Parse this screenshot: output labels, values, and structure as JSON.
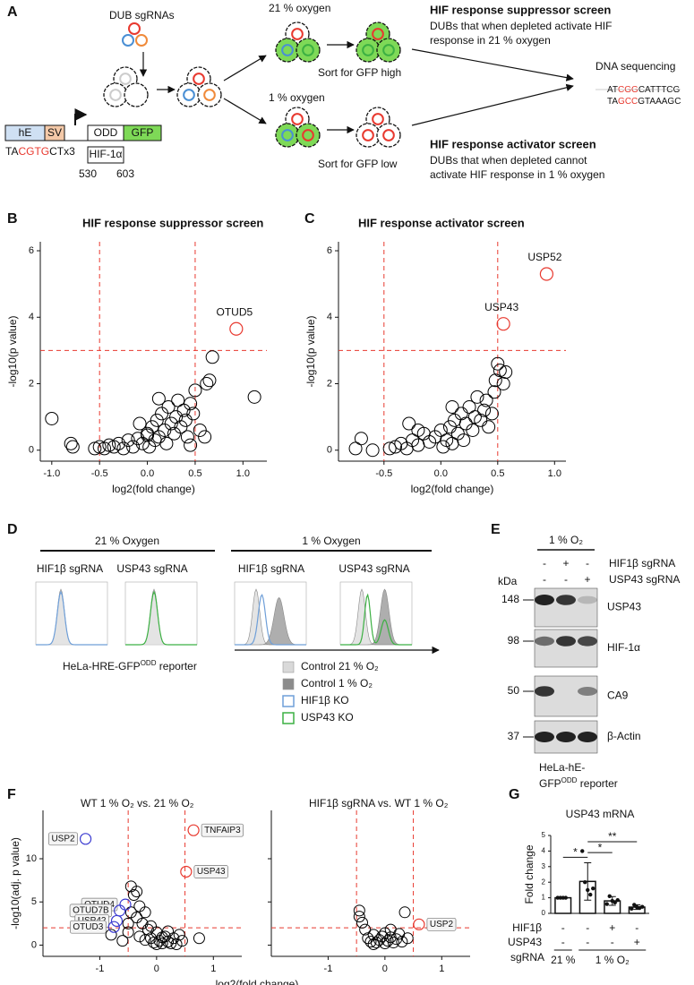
{
  "panel_a": {
    "label": "A",
    "sgrnas": "DUB sgRNAs",
    "normoxia": "21 % oxygen",
    "sort_high": "Sort for GFP high",
    "hypoxia": "1 % oxygen",
    "sort_low": "Sort for GFP low",
    "suppressor_title": "HIF response suppressor screen",
    "suppressor_text": [
      "DUBs that when depleted activate HIF",
      "response in 21 % oxygen"
    ],
    "sequencing": "DNA sequencing",
    "seq_top": [
      "AT",
      "CGG",
      "CATTTCG"
    ],
    "seq_bottom": [
      "TA",
      "GCC",
      "GTAAAGC"
    ],
    "activator_title": "HIF response activator screen",
    "activator_text": [
      "DUBs that when depleted cannot",
      "activate HIF response in 1 % oxygen"
    ],
    "construct": {
      "he": "hE",
      "sv": "SV",
      "odd": "ODD",
      "gfp": "GFP",
      "hif": "HIF-1α",
      "start": "530",
      "end": "603",
      "motif": [
        "TA",
        "CGTG",
        "CTx3"
      ]
    }
  },
  "chart_data": [
    {
      "type": "scatter",
      "panel": "B",
      "title": "HIF response suppressor screen",
      "x_label": "log2(fold change)",
      "y_label": "-log10(p value)",
      "xlim": [
        -1.12,
        1.25
      ],
      "ylim": [
        -0.33,
        6.27
      ],
      "xticks": [
        {
          "value": -1,
          "label": "-1.0"
        },
        {
          "value": -0.5,
          "label": "-0.5"
        },
        {
          "value": 0,
          "label": "0.0"
        },
        {
          "value": 0.5,
          "label": "0.5"
        },
        {
          "value": 1,
          "label": "1.0"
        }
      ],
      "yticks": [
        0,
        2,
        4,
        6
      ],
      "thresholds": {
        "x": [
          -0.5,
          0.5
        ],
        "y": 3,
        "color": "#e8392f"
      },
      "color": "#000000",
      "x": [
        -1.0,
        -0.8,
        -0.78,
        -0.55,
        -0.5,
        -0.45,
        -0.4,
        -0.35,
        -0.3,
        -0.25,
        -0.2,
        -0.15,
        -0.1,
        -0.05,
        0,
        0.02,
        0.05,
        0.08,
        0.1,
        0.12,
        0.15,
        0.18,
        0.2,
        0.22,
        0.25,
        0.28,
        0.3,
        0.32,
        0.35,
        0.38,
        0.4,
        0.42,
        0.45,
        0.48,
        0.5,
        0.55,
        0.6,
        0.62,
        0.65,
        0.68,
        0.45,
        0.12,
        -0.08,
        0.0,
        1.12
      ],
      "y": [
        0.95,
        0.2,
        0.1,
        0.05,
        0.1,
        0.05,
        0.15,
        0.1,
        0.2,
        0.05,
        0.3,
        0.1,
        0.35,
        0.2,
        0.5,
        0.1,
        0.7,
        0.3,
        0.9,
        0.4,
        1.1,
        0.6,
        0.2,
        1.3,
        0.8,
        0.5,
        1.0,
        1.5,
        0.7,
        1.2,
        0.9,
        0.4,
        1.4,
        1.1,
        1.8,
        0.6,
        0.4,
        2.0,
        2.1,
        2.8,
        0.15,
        1.55,
        0.8,
        0.45,
        1.6
      ],
      "highlights": [
        {
          "label": "OTUD5",
          "x": 0.93,
          "y": 3.65,
          "color": "#e8392f"
        }
      ]
    },
    {
      "type": "scatter",
      "panel": "C",
      "title": "HIF response activator screen",
      "x_label": "log2(fold change)",
      "y_label": "-log10(p value)",
      "xlim": [
        -0.9,
        1.1
      ],
      "ylim": [
        -0.33,
        6.27
      ],
      "xticks": [
        {
          "value": -0.5,
          "label": "-0.5"
        },
        {
          "value": 0,
          "label": "0.0"
        },
        {
          "value": 0.5,
          "label": "0.5"
        },
        {
          "value": 1,
          "label": "1.0"
        }
      ],
      "yticks": [
        0,
        2,
        4,
        6
      ],
      "thresholds": {
        "x": [
          -0.5,
          0.5
        ],
        "y": 3,
        "color": "#e8392f"
      },
      "color": "#000000",
      "x": [
        -0.75,
        -0.7,
        -0.6,
        -0.45,
        -0.4,
        -0.35,
        -0.3,
        -0.25,
        -0.2,
        -0.15,
        -0.1,
        -0.05,
        0,
        0.02,
        0.05,
        0.08,
        0.1,
        0.12,
        0.15,
        0.18,
        0.2,
        0.22,
        0.25,
        0.28,
        0.3,
        0.32,
        0.35,
        0.38,
        0.4,
        0.42,
        0.45,
        0.47,
        0.48,
        0.5,
        0.52,
        0.55,
        0.57,
        -0.28,
        -0.2,
        0.1
      ],
      "y": [
        0.05,
        0.35,
        0.0,
        0.05,
        0.1,
        0.2,
        0.05,
        0.3,
        0.15,
        0.5,
        0.25,
        0.4,
        0.6,
        0.1,
        0.3,
        0.7,
        0.2,
        0.9,
        0.5,
        1.1,
        0.3,
        0.8,
        1.3,
        0.6,
        1.0,
        1.6,
        0.9,
        1.2,
        1.5,
        0.7,
        1.1,
        1.75,
        2.1,
        2.6,
        2.4,
        2.0,
        2.35,
        0.8,
        0.6,
        1.3
      ],
      "highlights": [
        {
          "label": "USP52",
          "x": 0.93,
          "y": 5.3,
          "color": "#e8392f"
        },
        {
          "label": "USP43",
          "x": 0.55,
          "y": 3.8,
          "color": "#e8392f"
        }
      ]
    },
    {
      "type": "scatter",
      "panel": "F",
      "title": "WT 1 % O₂ vs. 21 % O₂",
      "x_label": "log2(fold change)",
      "y_label": "-log10(adj. p value)",
      "xlim": [
        -2.0,
        1.5
      ],
      "ylim": [
        -1.3,
        15.6
      ],
      "xticks": [
        -1,
        0,
        1
      ],
      "yticks": [
        0,
        5,
        10
      ],
      "thresholds": {
        "x": [
          -0.5,
          0.5
        ],
        "y": 2,
        "color": "#e8392f"
      },
      "color": "#000000",
      "x": [
        -0.8,
        -0.6,
        -0.5,
        -0.45,
        -0.4,
        -0.35,
        -0.3,
        -0.35,
        -0.25,
        -0.2,
        -0.15,
        -0.1,
        -0.05,
        0,
        0.05,
        0.1,
        0.15,
        0.2,
        0.25,
        0.3,
        0.35,
        0.4,
        0.45,
        -0.3,
        -0.2,
        -0.1,
        0.0,
        0.1,
        0.2,
        0.75,
        -0.45,
        -0.5
      ],
      "y": [
        1.2,
        0.5,
        1.5,
        6.8,
        5.8,
        6.2,
        4.5,
        3.2,
        2.5,
        3.8,
        1.8,
        0.8,
        0.3,
        0.1,
        0.5,
        0.2,
        1.0,
        0.4,
        0.2,
        0.8,
        0.1,
        1.2,
        0.5,
        1.0,
        0.6,
        2.2,
        1.5,
        0.9,
        1.6,
        0.8,
        3.8,
        2.5
      ],
      "highlights": [
        {
          "label": "USP2",
          "x": -1.25,
          "y": 12.3,
          "color": "#3a3ad0"
        },
        {
          "label": "TNFAIP3",
          "x": 0.65,
          "y": 13.3,
          "color": "#e8392f"
        },
        {
          "label": "USP43",
          "x": 0.52,
          "y": 8.5,
          "color": "#e8392f"
        },
        {
          "label": "OTUD4",
          "x": -0.55,
          "y": 4.7,
          "color": "#3a3ad0"
        },
        {
          "label": "OTUD7B",
          "x": -0.65,
          "y": 4.0,
          "color": "#3a3ad0"
        },
        {
          "label": "USP42",
          "x": -0.7,
          "y": 2.8,
          "color": "#3a3ad0"
        },
        {
          "label": "OTUD3",
          "x": -0.75,
          "y": 2.1,
          "color": "#3a3ad0"
        }
      ],
      "label_boxes": true
    },
    {
      "type": "scatter",
      "title": "HIF1β sgRNA vs. WT 1 % O₂",
      "xlim": [
        -2.0,
        1.5
      ],
      "ylim": [
        -1.3,
        15.6
      ],
      "xticks": [
        -1,
        0,
        1
      ],
      "yticks": [
        0,
        5,
        10
      ],
      "yticklabels": false,
      "thresholds": {
        "x": [
          -0.5,
          0.5
        ],
        "y": 2,
        "color": "#e8392f"
      },
      "color": "#000000",
      "x": [
        -0.45,
        -0.4,
        -0.35,
        -0.3,
        -0.25,
        -0.2,
        -0.15,
        -0.1,
        -0.05,
        0,
        0.05,
        0.1,
        0.15,
        0.2,
        0.25,
        0.3,
        0.35,
        0.4,
        -0.45,
        0.1,
        -0.2,
        0.0
      ],
      "y": [
        4.0,
        2.6,
        1.8,
        0.8,
        0.4,
        1.2,
        0.3,
        0.6,
        1.0,
        0.2,
        0.5,
        0.9,
        0.3,
        0.7,
        1.3,
        0.4,
        3.8,
        0.8,
        3.3,
        1.8,
        0.1,
        1.4
      ],
      "highlights": [
        {
          "label": "USP2",
          "x": 0.6,
          "y": 2.4,
          "color": "#e8392f"
        }
      ],
      "label_boxes": true
    },
    {
      "type": "bar",
      "panel": "G",
      "title": "USP43 mRNA",
      "y_label": "Fold change",
      "ylim": [
        0,
        5
      ],
      "yticks": [
        0,
        1,
        2,
        3,
        4,
        5
      ],
      "values": [
        1,
        2.05,
        0.8,
        0.4
      ],
      "errors": [
        0,
        1.2,
        0.28,
        0.15
      ],
      "points": [
        [
          1,
          1,
          1,
          1
        ],
        [
          4.0,
          2.0,
          1.5,
          1.2,
          1.6
        ],
        [
          0.6,
          1.1,
          0.8,
          0.7,
          0.85
        ],
        [
          0.3,
          0.55,
          0.4,
          0.35,
          0.42
        ]
      ],
      "color": "#ffffff",
      "significance": [
        "*",
        "*",
        "**"
      ],
      "rows": [
        {
          "name": "HIF1β",
          "marks": [
            "-",
            "-",
            "+",
            "-"
          ]
        },
        {
          "name": "USP43",
          "marks": [
            "-",
            "-",
            "-",
            "+"
          ]
        }
      ],
      "row_title": "sgRNA",
      "groups": [
        "21 %",
        "1 % O₂"
      ]
    }
  ],
  "panel_d": {
    "label": "D",
    "conditions": [
      "21 % Oxygen",
      "1 % Oxygen"
    ],
    "samples": [
      "HIF1β sgRNA",
      "USP43 sgRNA",
      "HIF1β sgRNA",
      "USP43 sgRNA"
    ],
    "reporter": [
      "HeLa-HRE-GFP",
      "ODD",
      " reporter"
    ],
    "legend": [
      {
        "name": "Control 21 % O₂",
        "color": "#d9d9d9",
        "style": "fill"
      },
      {
        "name": "Control 1 % O₂",
        "color": "#8c8c8c",
        "style": "fill"
      },
      {
        "name": "HIF1β KO",
        "color": "#6f9fd8",
        "style": "outline"
      },
      {
        "name": "USP43 KO",
        "color": "#3cb043",
        "style": "outline"
      }
    ]
  },
  "panel_e": {
    "label": "E",
    "condition": "1 % O₂",
    "unit": "kDa",
    "rows": [
      {
        "name": "HIF1β sgRNA",
        "marks": [
          "-",
          "+",
          "-"
        ]
      },
      {
        "name": "USP43 sgRNA",
        "marks": [
          "-",
          "-",
          "+"
        ]
      }
    ],
    "blots": [
      {
        "marker": "148",
        "protein": "USP43"
      },
      {
        "marker": "98",
        "protein": "HIF-1α"
      },
      {
        "marker": "50",
        "protein": "CA9"
      },
      {
        "marker": "37",
        "protein": "β-Actin"
      }
    ],
    "cells": [
      "HeLa-hE-",
      "GFP",
      "ODD",
      " reporter"
    ]
  }
}
